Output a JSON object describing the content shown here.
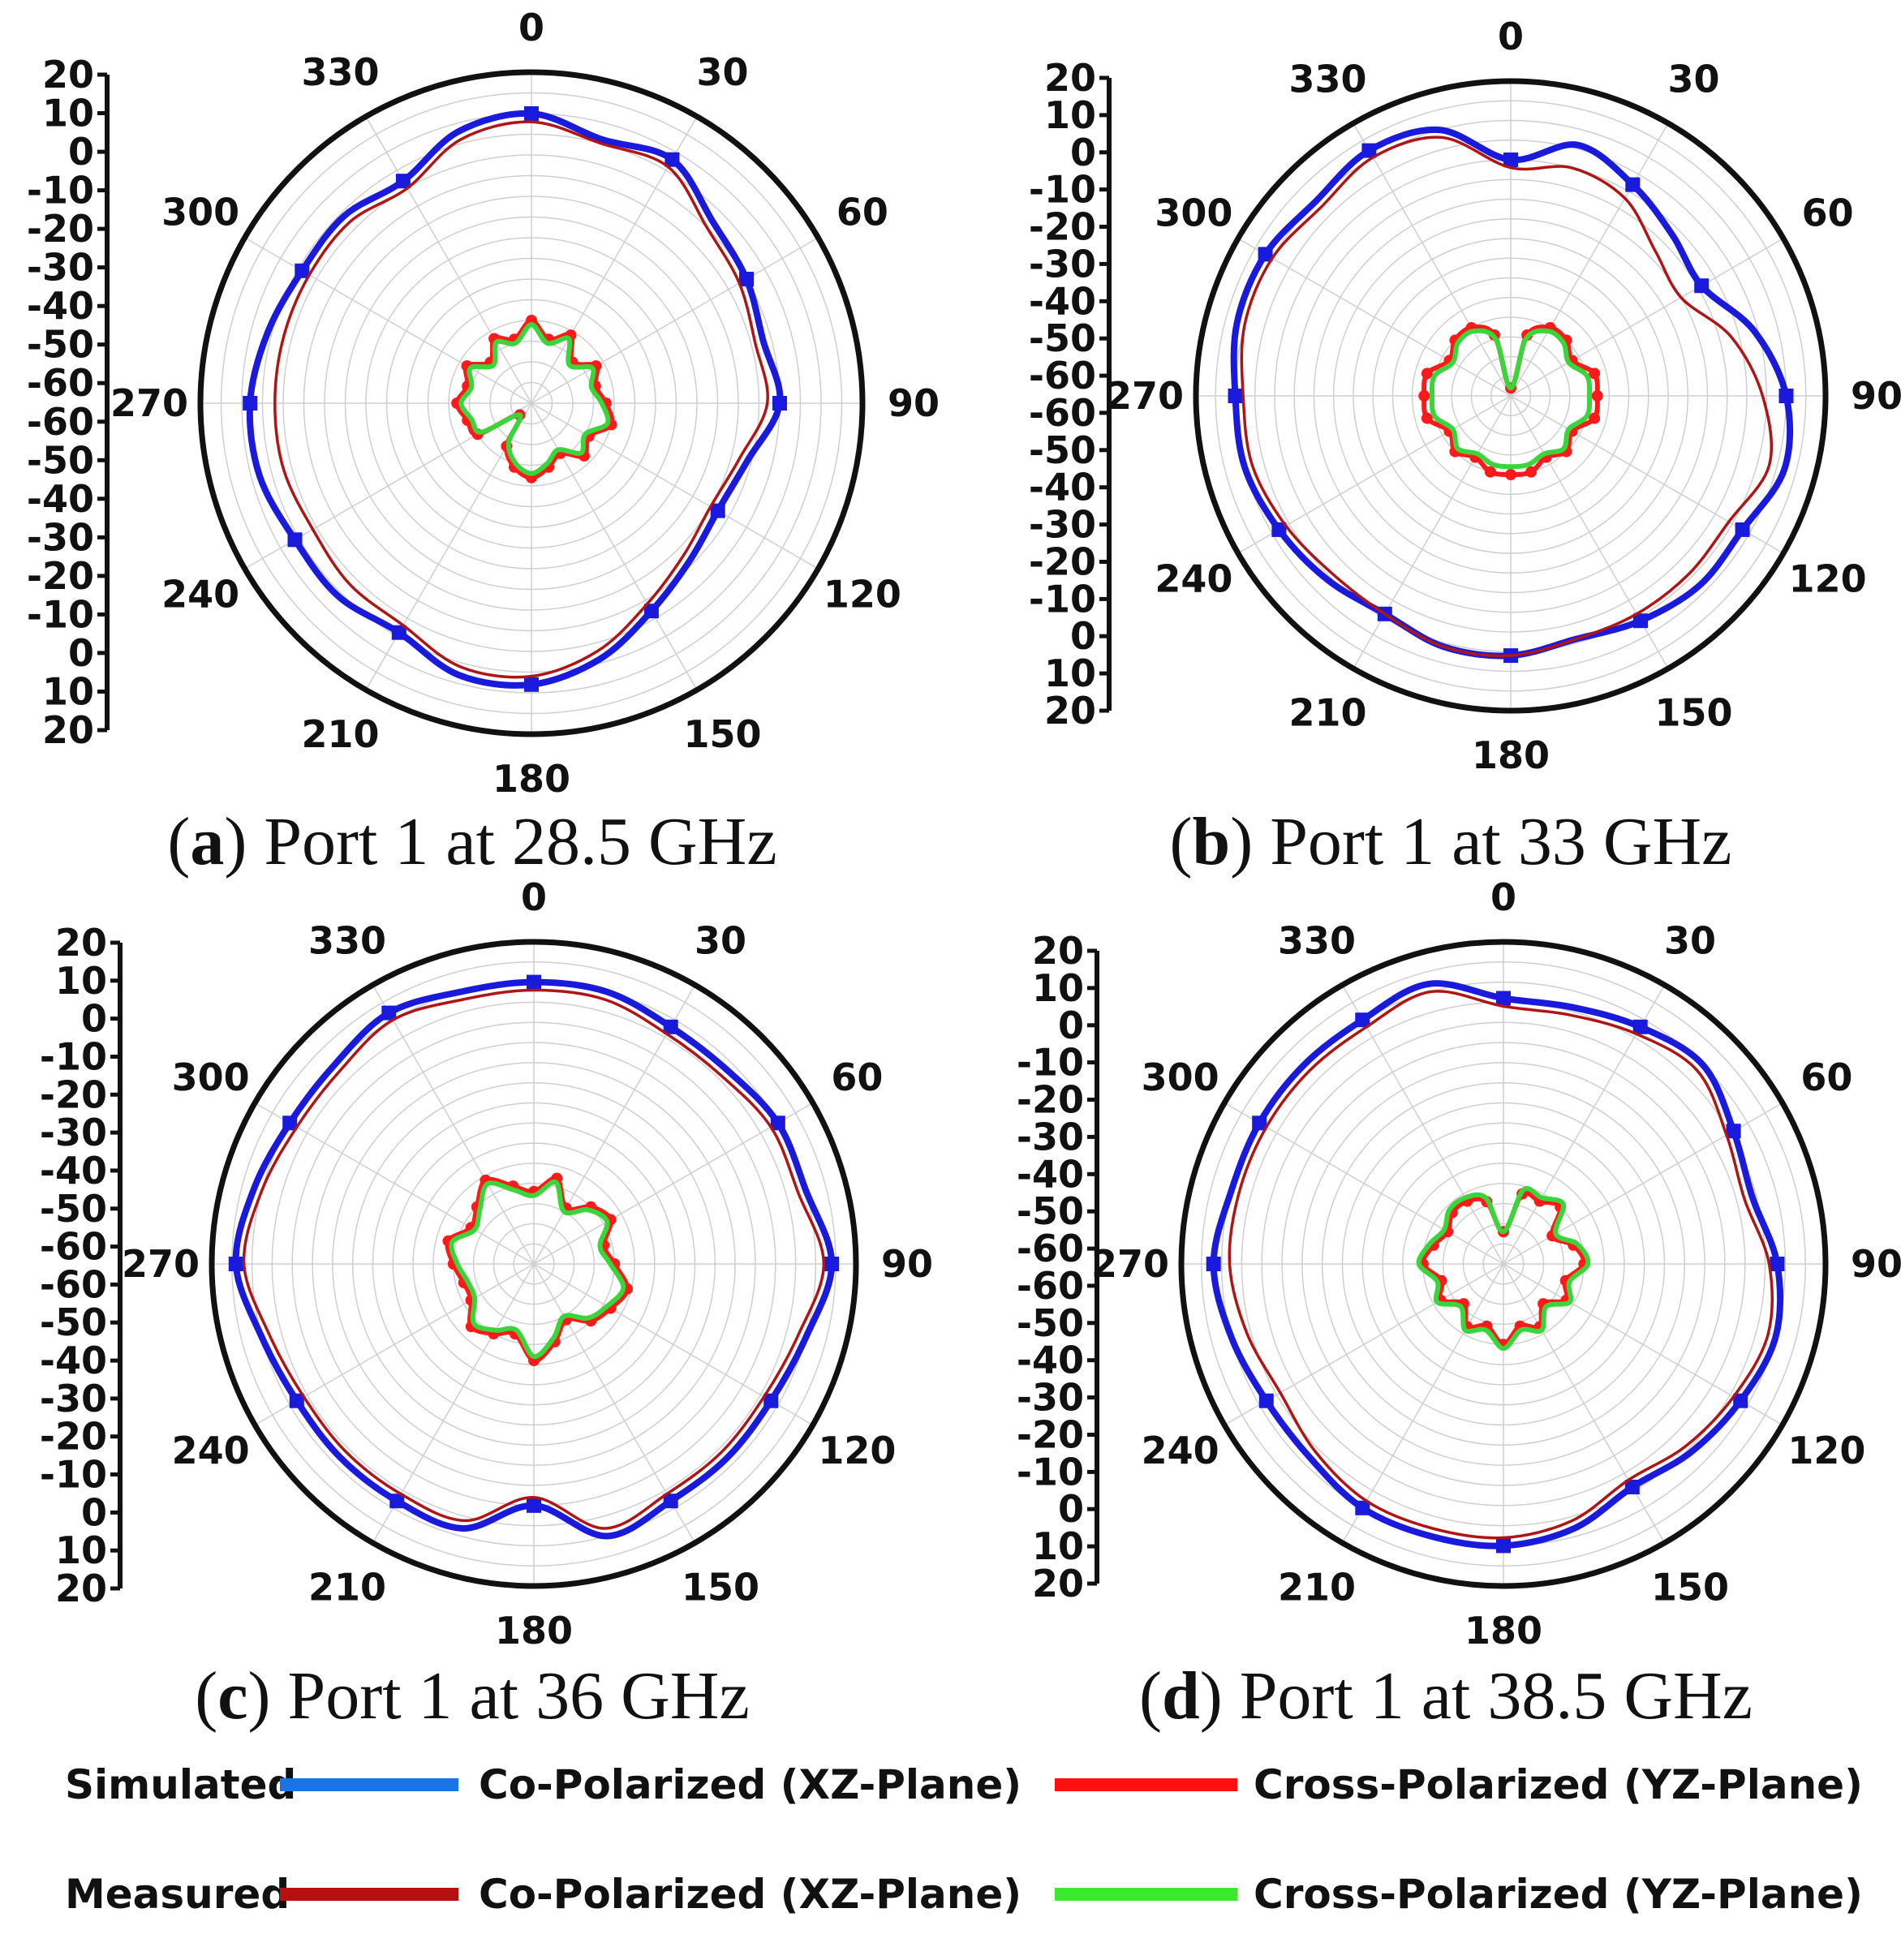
{
  "chart_data": [
    {
      "type": "polar",
      "panel": "a",
      "caption_letter": "a",
      "caption_text": " Port 1 at 28.5 GHz",
      "radial_axis_labels": [
        "20",
        "10",
        "0",
        "-10",
        "-20",
        "-30",
        "-40",
        "-50",
        "-60",
        "-60",
        "-50",
        "-40",
        "-30",
        "-20",
        "-10",
        "0",
        "10",
        "20"
      ],
      "angle_labels": [
        "0",
        "30",
        "60",
        "90",
        "120",
        "150",
        "180",
        "210",
        "240",
        "270",
        "300",
        "330"
      ],
      "rlim_db": [
        -60,
        20
      ],
      "series": [
        {
          "name": "Simulated Co-Polarized (XZ-Plane)",
          "color": "#1a1adc",
          "angles": [
            0,
            15,
            30,
            45,
            60,
            75,
            90,
            105,
            120,
            135,
            150,
            165,
            180,
            195,
            210,
            225,
            240,
            255,
            270,
            285,
            300,
            315,
            330,
            345
          ],
          "values_db": [
            10,
            6,
            8,
            2,
            0,
            -2,
            0,
            -6,
            -8,
            -6,
            -2,
            4,
            8,
            8,
            4,
            6,
            6,
            8,
            8,
            6,
            4,
            4,
            2,
            8
          ]
        },
        {
          "name": "Measured Co-Polarized (XZ-Plane)",
          "color": "#b01515",
          "angles": [
            0,
            15,
            30,
            45,
            60,
            75,
            90,
            105,
            120,
            135,
            150,
            165,
            180,
            195,
            210,
            225,
            240,
            255,
            270,
            285,
            300,
            315,
            330,
            345
          ],
          "values_db": [
            8,
            5,
            6,
            0,
            -2,
            -4,
            -3,
            -8,
            -10,
            -8,
            -4,
            2,
            6,
            6,
            2,
            2,
            1,
            2,
            2,
            2,
            2,
            2,
            0,
            6
          ]
        },
        {
          "name": "Simulated Cross-Polarized (YZ-Plane)",
          "color": "#ff1a1a",
          "angles": [
            0,
            15,
            30,
            45,
            60,
            75,
            90,
            105,
            120,
            135,
            150,
            165,
            180,
            195,
            210,
            225,
            240,
            255,
            270,
            285,
            300,
            315,
            330,
            345
          ],
          "values_db": [
            -40,
            -44,
            -41,
            -46,
            -42,
            -44,
            -42,
            -40,
            -44,
            -42,
            -46,
            -44,
            -42,
            -44,
            -48,
            -56,
            -45,
            -44,
            -42,
            -44,
            -42,
            -46,
            -42,
            -44
          ]
        },
        {
          "name": "Measured Cross-Polarized (YZ-Plane)",
          "color": "#3ad53a",
          "angles": [
            0,
            15,
            30,
            45,
            60,
            75,
            90,
            105,
            120,
            135,
            150,
            165,
            180,
            195,
            210,
            225,
            240,
            255,
            270,
            285,
            300,
            315,
            330,
            345
          ],
          "values_db": [
            -41,
            -45,
            -42,
            -47,
            -43,
            -45,
            -43,
            -41,
            -45,
            -43,
            -47,
            -45,
            -43,
            -45,
            -49,
            -56,
            -46,
            -45,
            -43,
            -45,
            -43,
            -47,
            -43,
            -45
          ]
        }
      ]
    },
    {
      "type": "polar",
      "panel": "b",
      "caption_letter": "b",
      "caption_text": " Port 1 at 33 GHz",
      "radial_axis_labels": [
        "20",
        "10",
        "0",
        "-10",
        "-20",
        "-30",
        "-40",
        "-50",
        "-60",
        "-60",
        "-50",
        "-40",
        "-30",
        "-20",
        "-10",
        "0",
        "10",
        "20"
      ],
      "angle_labels": [
        "0",
        "30",
        "60",
        "90",
        "120",
        "150",
        "180",
        "210",
        "240",
        "270",
        "300",
        "330"
      ],
      "rlim_db": [
        -60,
        20
      ],
      "series": [
        {
          "name": "Simulated Co-Polarized (XZ-Plane)",
          "color": "#1a1adc",
          "angles": [
            0,
            15,
            30,
            45,
            60,
            75,
            90,
            105,
            120,
            135,
            150,
            165,
            180,
            195,
            210,
            225,
            240,
            255,
            270,
            285,
            300,
            315,
            330,
            345
          ],
          "values_db": [
            0,
            6,
            2,
            -2,
            -4,
            4,
            10,
            12,
            8,
            8,
            6,
            4,
            6,
            6,
            4,
            6,
            8,
            10,
            10,
            12,
            12,
            10,
            12,
            10
          ]
        },
        {
          "name": "Measured Co-Polarized (XZ-Plane)",
          "color": "#b01515",
          "angles": [
            0,
            15,
            30,
            45,
            60,
            75,
            90,
            105,
            120,
            135,
            150,
            165,
            180,
            195,
            210,
            225,
            240,
            255,
            270,
            285,
            300,
            315,
            330,
            345
          ],
          "values_db": [
            -2,
            0,
            -2,
            -8,
            -10,
            -2,
            4,
            8,
            4,
            4,
            4,
            4,
            6,
            6,
            4,
            4,
            6,
            8,
            8,
            10,
            10,
            8,
            10,
            8
          ]
        },
        {
          "name": "Simulated Cross-Polarized (YZ-Plane)",
          "color": "#ff1a1a",
          "angles": [
            0,
            15,
            30,
            45,
            60,
            75,
            90,
            105,
            120,
            135,
            150,
            165,
            180,
            195,
            210,
            225,
            240,
            255,
            270,
            285,
            300,
            315,
            330,
            345
          ],
          "values_db": [
            -58,
            -44,
            -40,
            -40,
            -42,
            -38,
            -38,
            -38,
            -42,
            -40,
            -42,
            -40,
            -40,
            -40,
            -42,
            -40,
            -42,
            -38,
            -38,
            -38,
            -42,
            -40,
            -40,
            -44
          ]
        },
        {
          "name": "Measured Cross-Polarized (YZ-Plane)",
          "color": "#3ad53a",
          "angles": [
            0,
            15,
            30,
            45,
            60,
            75,
            90,
            105,
            120,
            135,
            150,
            165,
            180,
            195,
            210,
            225,
            240,
            255,
            270,
            285,
            300,
            315,
            330,
            345
          ],
          "values_db": [
            -58,
            -45,
            -41,
            -41,
            -43,
            -40,
            -40,
            -40,
            -43,
            -41,
            -43,
            -42,
            -42,
            -42,
            -43,
            -41,
            -43,
            -40,
            -40,
            -40,
            -43,
            -41,
            -41,
            -45
          ]
        }
      ]
    },
    {
      "type": "polar",
      "panel": "c",
      "caption_letter": "c",
      "caption_text": " Port 1 at 36 GHz",
      "radial_axis_labels": [
        "20",
        "10",
        "0",
        "-10",
        "-20",
        "-30",
        "-40",
        "-50",
        "-60",
        "-60",
        "-50",
        "-40",
        "-30",
        "-20",
        "-10",
        "0",
        "10",
        "20"
      ],
      "angle_labels": [
        "0",
        "30",
        "60",
        "90",
        "120",
        "150",
        "180",
        "210",
        "240",
        "270",
        "300",
        "330"
      ],
      "rlim_db": [
        -60,
        20
      ],
      "series": [
        {
          "name": "Simulated Co-Polarized (XZ-Plane)",
          "color": "#1a1adc",
          "angles": [
            0,
            15,
            30,
            45,
            60,
            75,
            90,
            105,
            120,
            135,
            150,
            165,
            180,
            195,
            210,
            225,
            240,
            255,
            270,
            285,
            300,
            315,
            330,
            345
          ],
          "values_db": [
            10,
            10,
            8,
            8,
            10,
            10,
            14,
            10,
            8,
            8,
            8,
            10,
            0,
            8,
            8,
            8,
            8,
            10,
            14,
            12,
            10,
            10,
            12,
            10
          ]
        },
        {
          "name": "Measured Co-Polarized (XZ-Plane)",
          "color": "#b01515",
          "angles": [
            0,
            15,
            30,
            45,
            60,
            75,
            90,
            105,
            120,
            135,
            150,
            165,
            180,
            195,
            210,
            225,
            240,
            255,
            270,
            285,
            300,
            315,
            330,
            345
          ],
          "values_db": [
            8,
            8,
            6,
            6,
            8,
            8,
            12,
            8,
            6,
            6,
            6,
            8,
            -2,
            6,
            6,
            6,
            6,
            8,
            12,
            10,
            8,
            8,
            10,
            8
          ]
        },
        {
          "name": "Simulated Cross-Polarized (YZ-Plane)",
          "color": "#ff1a1a",
          "angles": [
            0,
            15,
            30,
            45,
            60,
            75,
            90,
            105,
            120,
            135,
            150,
            165,
            180,
            195,
            210,
            225,
            240,
            255,
            270,
            285,
            300,
            315,
            330,
            345
          ],
          "values_db": [
            -42,
            -38,
            -44,
            -40,
            -38,
            -42,
            -40,
            -36,
            -38,
            -40,
            -44,
            -40,
            -36,
            -42,
            -40,
            -38,
            -42,
            -42,
            -40,
            -38,
            -42,
            -40,
            -36,
            -40
          ]
        },
        {
          "name": "Measured Cross-Polarized (YZ-Plane)",
          "color": "#3ad53a",
          "angles": [
            0,
            15,
            30,
            45,
            60,
            75,
            90,
            105,
            120,
            135,
            150,
            165,
            180,
            195,
            210,
            225,
            240,
            255,
            270,
            285,
            300,
            315,
            330,
            345
          ],
          "values_db": [
            -43,
            -39,
            -45,
            -41,
            -39,
            -43,
            -41,
            -37,
            -39,
            -41,
            -45,
            -41,
            -37,
            -43,
            -41,
            -39,
            -43,
            -43,
            -41,
            -39,
            -43,
            -41,
            -37,
            -41
          ]
        }
      ]
    },
    {
      "type": "polar",
      "panel": "d",
      "caption_letter": "d",
      "caption_text": " Port 1 at 38.5 GHz",
      "radial_axis_labels": [
        "20",
        "10",
        "0",
        "-10",
        "-20",
        "-30",
        "-40",
        "-50",
        "-60",
        "-60",
        "-50",
        "-40",
        "-30",
        "-20",
        "-10",
        "0",
        "10",
        "20"
      ],
      "angle_labels": [
        "0",
        "30",
        "60",
        "90",
        "120",
        "150",
        "180",
        "210",
        "240",
        "270",
        "300",
        "330"
      ],
      "rlim_db": [
        -60,
        20
      ],
      "series": [
        {
          "name": "Simulated Co-Polarized (XZ-Plane)",
          "color": "#1a1adc",
          "angles": [
            0,
            15,
            30,
            45,
            60,
            75,
            90,
            105,
            120,
            135,
            150,
            165,
            180,
            195,
            210,
            225,
            240,
            255,
            270,
            285,
            300,
            315,
            330,
            345
          ],
          "values_db": [
            6,
            6,
            8,
            10,
            6,
            4,
            8,
            10,
            8,
            6,
            4,
            8,
            10,
            10,
            10,
            8,
            8,
            10,
            12,
            10,
            10,
            10,
            10,
            12
          ]
        },
        {
          "name": "Measured Co-Polarized (XZ-Plane)",
          "color": "#b01515",
          "angles": [
            0,
            15,
            30,
            45,
            60,
            75,
            90,
            105,
            120,
            135,
            150,
            165,
            180,
            195,
            210,
            225,
            240,
            255,
            270,
            285,
            300,
            315,
            330,
            345
          ],
          "values_db": [
            4,
            4,
            6,
            8,
            4,
            2,
            6,
            8,
            6,
            4,
            2,
            6,
            8,
            8,
            8,
            6,
            4,
            6,
            8,
            8,
            8,
            8,
            8,
            10
          ]
        },
        {
          "name": "Simulated Cross-Polarized (YZ-Plane)",
          "color": "#ff1a1a",
          "angles": [
            0,
            15,
            30,
            45,
            60,
            75,
            90,
            105,
            120,
            135,
            150,
            165,
            180,
            195,
            210,
            225,
            240,
            255,
            270,
            285,
            300,
            315,
            330,
            345
          ],
          "values_db": [
            -52,
            -42,
            -42,
            -40,
            -46,
            -42,
            -40,
            -44,
            -42,
            -46,
            -42,
            -44,
            -40,
            -44,
            -42,
            -46,
            -42,
            -44,
            -40,
            -42,
            -44,
            -42,
            -42,
            -44
          ]
        },
        {
          "name": "Measured Cross-Polarized (YZ-Plane)",
          "color": "#3ad53a",
          "angles": [
            0,
            15,
            30,
            45,
            60,
            75,
            90,
            105,
            120,
            135,
            150,
            165,
            180,
            195,
            210,
            225,
            240,
            255,
            270,
            285,
            300,
            315,
            330,
            345
          ],
          "values_db": [
            -52,
            -41,
            -41,
            -39,
            -45,
            -41,
            -39,
            -43,
            -41,
            -45,
            -41,
            -43,
            -39,
            -43,
            -41,
            -45,
            -41,
            -43,
            -39,
            -41,
            -43,
            -41,
            -41,
            -43
          ]
        }
      ]
    }
  ],
  "legend": {
    "rows": [
      {
        "label": "Simulated",
        "entries": [
          {
            "color": "#1a74e8",
            "text": "Co-Polarized  (XZ-Plane)"
          },
          {
            "color": "#ff1010",
            "text": "Cross-Polarized  (YZ-Plane)"
          }
        ]
      },
      {
        "label": "Measured",
        "entries": [
          {
            "color": "#b81010",
            "text": "Co-Polarized  (XZ-Plane)"
          },
          {
            "color": "#3bea2e",
            "text": "Cross-Polarized  (YZ-Plane)"
          }
        ]
      }
    ]
  }
}
